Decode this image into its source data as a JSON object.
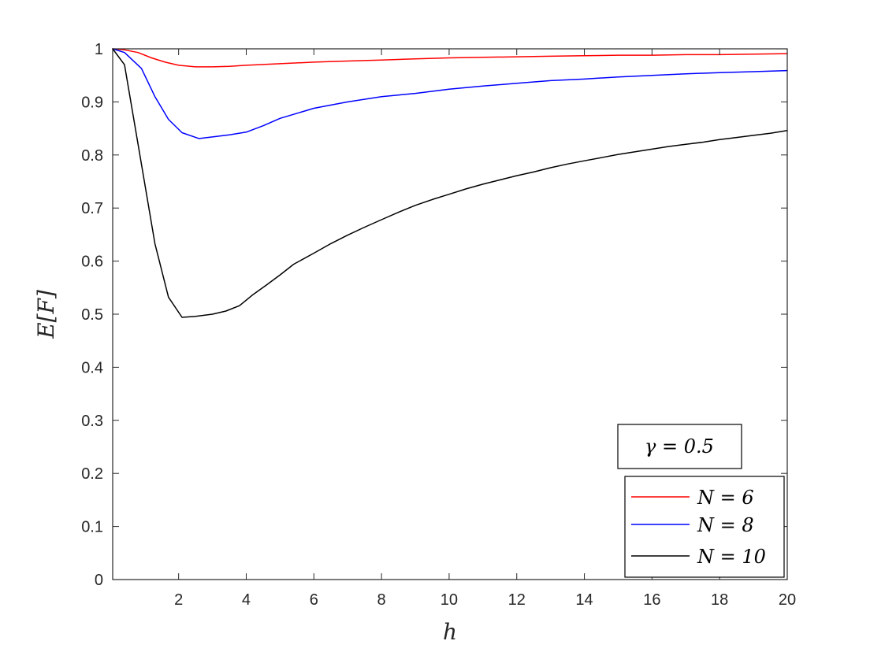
{
  "chart_data": {
    "type": "line",
    "xlabel": "h",
    "ylabel": "E[F]",
    "xlim": [
      0.05,
      20
    ],
    "ylim": [
      0,
      1
    ],
    "xticks": [
      2,
      4,
      6,
      8,
      10,
      12,
      14,
      16,
      18,
      20
    ],
    "yticks": [
      0,
      0.1,
      0.2,
      0.3,
      0.4,
      0.5,
      0.6,
      0.7,
      0.8,
      0.9,
      1
    ],
    "ytick_labels": [
      "0",
      "0.1",
      "0.2",
      "0.3",
      "0.4",
      "0.5",
      "0.6",
      "0.7",
      "0.8",
      "0.9",
      "1"
    ],
    "grid": false,
    "legend_position": "bottom-right",
    "annotation": "γ = 0.5",
    "series": [
      {
        "name": "N = 6",
        "color": "#ff0000",
        "x": [
          0.05,
          0.4,
          0.8,
          1.2,
          1.6,
          2.0,
          2.5,
          3.0,
          3.5,
          4.0,
          5.0,
          6.0,
          7.0,
          8.0,
          9.0,
          10.0,
          11.0,
          12.0,
          13.0,
          14.0,
          15.0,
          16.0,
          17.0,
          18.0,
          19.0,
          20.0
        ],
        "values": [
          1.0,
          0.998,
          0.993,
          0.983,
          0.975,
          0.969,
          0.966,
          0.966,
          0.967,
          0.969,
          0.972,
          0.975,
          0.977,
          0.979,
          0.981,
          0.983,
          0.984,
          0.985,
          0.986,
          0.987,
          0.988,
          0.988,
          0.989,
          0.989,
          0.99,
          0.991
        ]
      },
      {
        "name": "N = 8",
        "color": "#0000ff",
        "x": [
          0.05,
          0.4,
          0.9,
          1.3,
          1.7,
          2.1,
          2.6,
          3.0,
          3.5,
          4.0,
          4.5,
          5.0,
          6.0,
          7.0,
          8.0,
          9.0,
          10.0,
          11.0,
          12.0,
          13.0,
          14.0,
          15.0,
          16.0,
          17.0,
          18.0,
          19.0,
          20.0
        ],
        "values": [
          1.0,
          0.993,
          0.963,
          0.91,
          0.867,
          0.842,
          0.831,
          0.834,
          0.838,
          0.843,
          0.855,
          0.869,
          0.888,
          0.9,
          0.91,
          0.916,
          0.924,
          0.93,
          0.935,
          0.94,
          0.943,
          0.947,
          0.95,
          0.953,
          0.955,
          0.957,
          0.959
        ]
      },
      {
        "name": "N = 10",
        "color": "#000000",
        "x": [
          0.05,
          0.4,
          0.8,
          1.3,
          1.7,
          2.1,
          2.5,
          3.0,
          3.4,
          3.8,
          4.2,
          4.6,
          5.0,
          5.4,
          6.0,
          6.5,
          7.0,
          7.5,
          8.0,
          8.5,
          9.0,
          9.5,
          10.0,
          10.5,
          11.0,
          11.5,
          12.0,
          12.5,
          13.0,
          13.5,
          14.0,
          14.5,
          15.0,
          15.5,
          16.0,
          16.5,
          17.0,
          17.5,
          18.0,
          18.5,
          19.0,
          19.5,
          20.0
        ],
        "values": [
          1.0,
          0.97,
          0.82,
          0.633,
          0.532,
          0.494,
          0.496,
          0.5,
          0.506,
          0.516,
          0.537,
          0.555,
          0.574,
          0.594,
          0.615,
          0.633,
          0.649,
          0.664,
          0.678,
          0.692,
          0.705,
          0.716,
          0.726,
          0.736,
          0.745,
          0.753,
          0.761,
          0.768,
          0.776,
          0.783,
          0.789,
          0.795,
          0.801,
          0.806,
          0.811,
          0.816,
          0.82,
          0.824,
          0.829,
          0.833,
          0.837,
          0.841,
          0.846
        ]
      }
    ]
  }
}
